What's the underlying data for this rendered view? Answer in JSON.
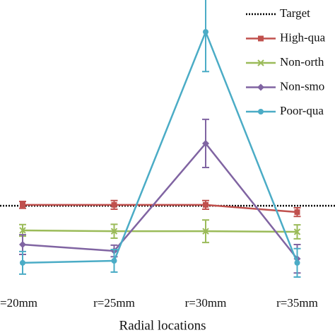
{
  "chart_data": {
    "type": "line",
    "x_label": "Radial locations",
    "categories": [
      "=20mm",
      "r=25mm",
      "r=30mm",
      "r=35mm"
    ],
    "ylim": [
      0,
      100
    ],
    "series": [
      {
        "name": "Target",
        "color": "#000000",
        "dash": "dotted",
        "values": [
          29,
          29,
          29,
          29
        ]
      },
      {
        "name": "High-qua",
        "color": "#c0504d",
        "marker": "square",
        "values": [
          29.3,
          29.3,
          29.3,
          26.8
        ],
        "errors": [
          1.2,
          1.5,
          1.5,
          1.5
        ]
      },
      {
        "name": "Non-orth",
        "color": "#9bbb59",
        "marker": "x",
        "values": [
          20.5,
          20.2,
          20.2,
          20
        ],
        "errors": [
          2,
          2.4,
          3.9,
          2.4
        ]
      },
      {
        "name": "Non-smo",
        "color": "#8064a2",
        "marker": "diamond",
        "values": [
          15.6,
          13.4,
          50.5,
          10.7
        ],
        "errors": [
          3.4,
          2,
          8.3,
          4.9
        ]
      },
      {
        "name": "Poor-qua",
        "color": "#4bacc6",
        "marker": "circle",
        "values": [
          9.3,
          10,
          89,
          9.3
        ],
        "errors": [
          3.9,
          3.9,
          13.7,
          4.9
        ]
      }
    ]
  }
}
